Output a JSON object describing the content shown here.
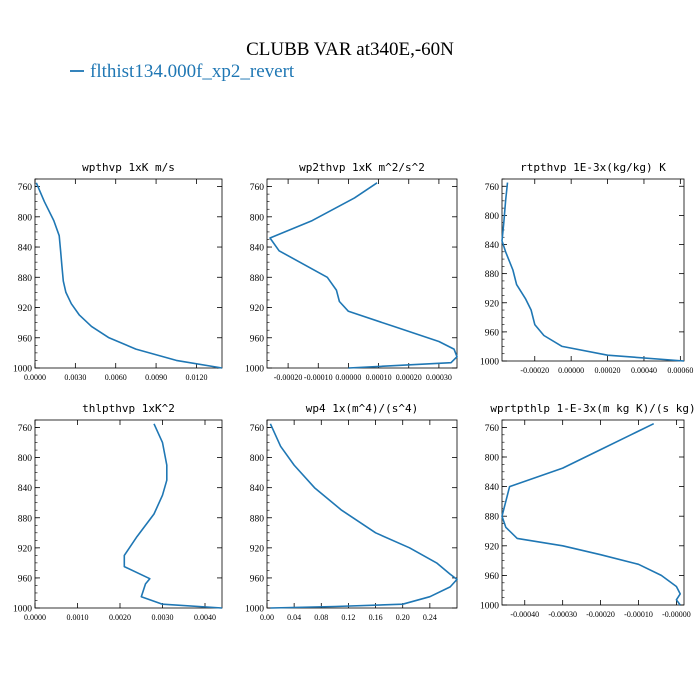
{
  "title": "CLUBB VAR at340E,-60N",
  "legend": {
    "label": "flthist134.000f_xp2_revert",
    "color": "#1f77b4"
  },
  "chart_data": [
    {
      "type": "line",
      "title": "wpthvp  1xK m/s",
      "x_ticks": [
        "0.0000",
        "0.0030",
        "0.0060",
        "0.0090",
        "0.0120"
      ],
      "xlim": [
        0,
        0.0139
      ],
      "y_ticks": [
        "760",
        "800",
        "840",
        "880",
        "920",
        "960",
        "1000"
      ],
      "ylim": [
        1000,
        750
      ],
      "series": [
        {
          "x": [
            0.0001,
            0.0007,
            0.0014,
            0.0018,
            0.0019,
            0.002,
            0.0021,
            0.0023,
            0.0027,
            0.0033,
            0.0042,
            0.0055,
            0.0075,
            0.0105,
            0.0139
          ],
          "y": [
            755,
            780,
            805,
            825,
            845,
            865,
            885,
            900,
            915,
            930,
            945,
            960,
            975,
            990,
            1000
          ]
        }
      ]
    },
    {
      "type": "line",
      "title": "wp2thvp  1xK m^2/s^2",
      "x_ticks": [
        "-0.00020",
        "-0.00010",
        "0.00000",
        "0.00010",
        "0.00020",
        "0.00030"
      ],
      "xlim": [
        -0.00027,
        0.00036
      ],
      "y_ticks": [
        "760",
        "800",
        "840",
        "880",
        "920",
        "960",
        "1000"
      ],
      "ylim": [
        1000,
        750
      ],
      "series": [
        {
          "x": [
            9.5e-05,
            2e-05,
            -0.00012,
            -0.00026,
            -0.00023,
            -7e-05,
            -4e-05,
            -3e-05,
            0.0,
            0.00015,
            0.0003,
            0.00035,
            0.00036,
            0.00034,
            0.0
          ],
          "y": [
            755,
            775,
            805,
            828,
            845,
            880,
            897,
            912,
            925,
            945,
            965,
            975,
            985,
            993,
            1000
          ]
        }
      ]
    },
    {
      "type": "line",
      "title": "rtpthvp  1E-3x(kg/kg) K",
      "x_ticks": [
        "-0.00020",
        "0.00000",
        "0.00020",
        "0.00040",
        "0.00060"
      ],
      "xlim": [
        -0.00038,
        0.00062
      ],
      "y_ticks": [
        "760",
        "800",
        "840",
        "880",
        "920",
        "960",
        "1000"
      ],
      "ylim": [
        1000,
        750
      ],
      "series": [
        {
          "x": [
            -0.00035,
            -0.00036,
            -0.00037,
            -0.00038,
            -0.00036,
            -0.00032,
            -0.0003,
            -0.00025,
            -0.00022,
            -0.0002,
            -0.00015,
            -5e-05,
            0.0002,
            0.00062
          ],
          "y": [
            755,
            780,
            810,
            835,
            850,
            875,
            895,
            915,
            930,
            950,
            965,
            980,
            992,
            1000
          ]
        }
      ]
    },
    {
      "type": "line",
      "title": "thlpthvp  1xK^2",
      "x_ticks": [
        "0.0000",
        "0.0010",
        "0.0020",
        "0.0030",
        "0.0040"
      ],
      "xlim": [
        0,
        0.0044
      ],
      "y_ticks": [
        "760",
        "800",
        "840",
        "880",
        "920",
        "960",
        "1000"
      ],
      "ylim": [
        1000,
        750
      ],
      "series": [
        {
          "x": [
            0.0028,
            0.003,
            0.0031,
            0.0031,
            0.003,
            0.0028,
            0.0024,
            0.0021,
            0.0021,
            0.0027,
            0.0026,
            0.0025,
            0.003,
            0.0044
          ],
          "y": [
            755,
            780,
            810,
            830,
            850,
            875,
            905,
            930,
            945,
            961,
            968,
            985,
            995,
            1000
          ]
        }
      ]
    },
    {
      "type": "line",
      "title": "wp4  1x(m^4)/(s^4)",
      "x_ticks": [
        "0.00",
        "0.04",
        "0.08",
        "0.12",
        "0.16",
        "0.20",
        "0.24"
      ],
      "xlim": [
        0,
        0.28
      ],
      "y_ticks": [
        "760",
        "800",
        "840",
        "880",
        "920",
        "960",
        "1000"
      ],
      "ylim": [
        1000,
        750
      ],
      "series": [
        {
          "x": [
            0.005,
            0.02,
            0.04,
            0.07,
            0.11,
            0.16,
            0.21,
            0.25,
            0.27,
            0.28,
            0.27,
            0.24,
            0.2,
            0.1,
            0.005
          ],
          "y": [
            755,
            785,
            810,
            840,
            870,
            900,
            920,
            940,
            955,
            962,
            972,
            985,
            995,
            998,
            1000
          ]
        }
      ]
    },
    {
      "type": "line",
      "title": "wprtpthlp  1-E-3x(m kg K)/(s kg)",
      "x_ticks": [
        "-0.00040",
        "-0.00030",
        "-0.00020",
        "-0.00010",
        "-0.00000"
      ],
      "xlim": [
        -0.00046,
        2e-05
      ],
      "y_ticks": [
        "760",
        "800",
        "840",
        "880",
        "920",
        "960",
        "1000"
      ],
      "ylim": [
        1000,
        750
      ],
      "series": [
        {
          "x": [
            -6e-05,
            -0.00012,
            -0.0002,
            -0.0003,
            -0.00044,
            -0.00045,
            -0.00046,
            -0.00045,
            -0.00042,
            -0.0003,
            -0.0002,
            -0.0001,
            -4e-05,
            0.0,
            1e-05,
            0.0,
            1e-05
          ],
          "y": [
            755,
            770,
            790,
            815,
            840,
            860,
            880,
            895,
            910,
            920,
            932,
            945,
            960,
            975,
            985,
            993,
            1000
          ]
        }
      ]
    }
  ]
}
